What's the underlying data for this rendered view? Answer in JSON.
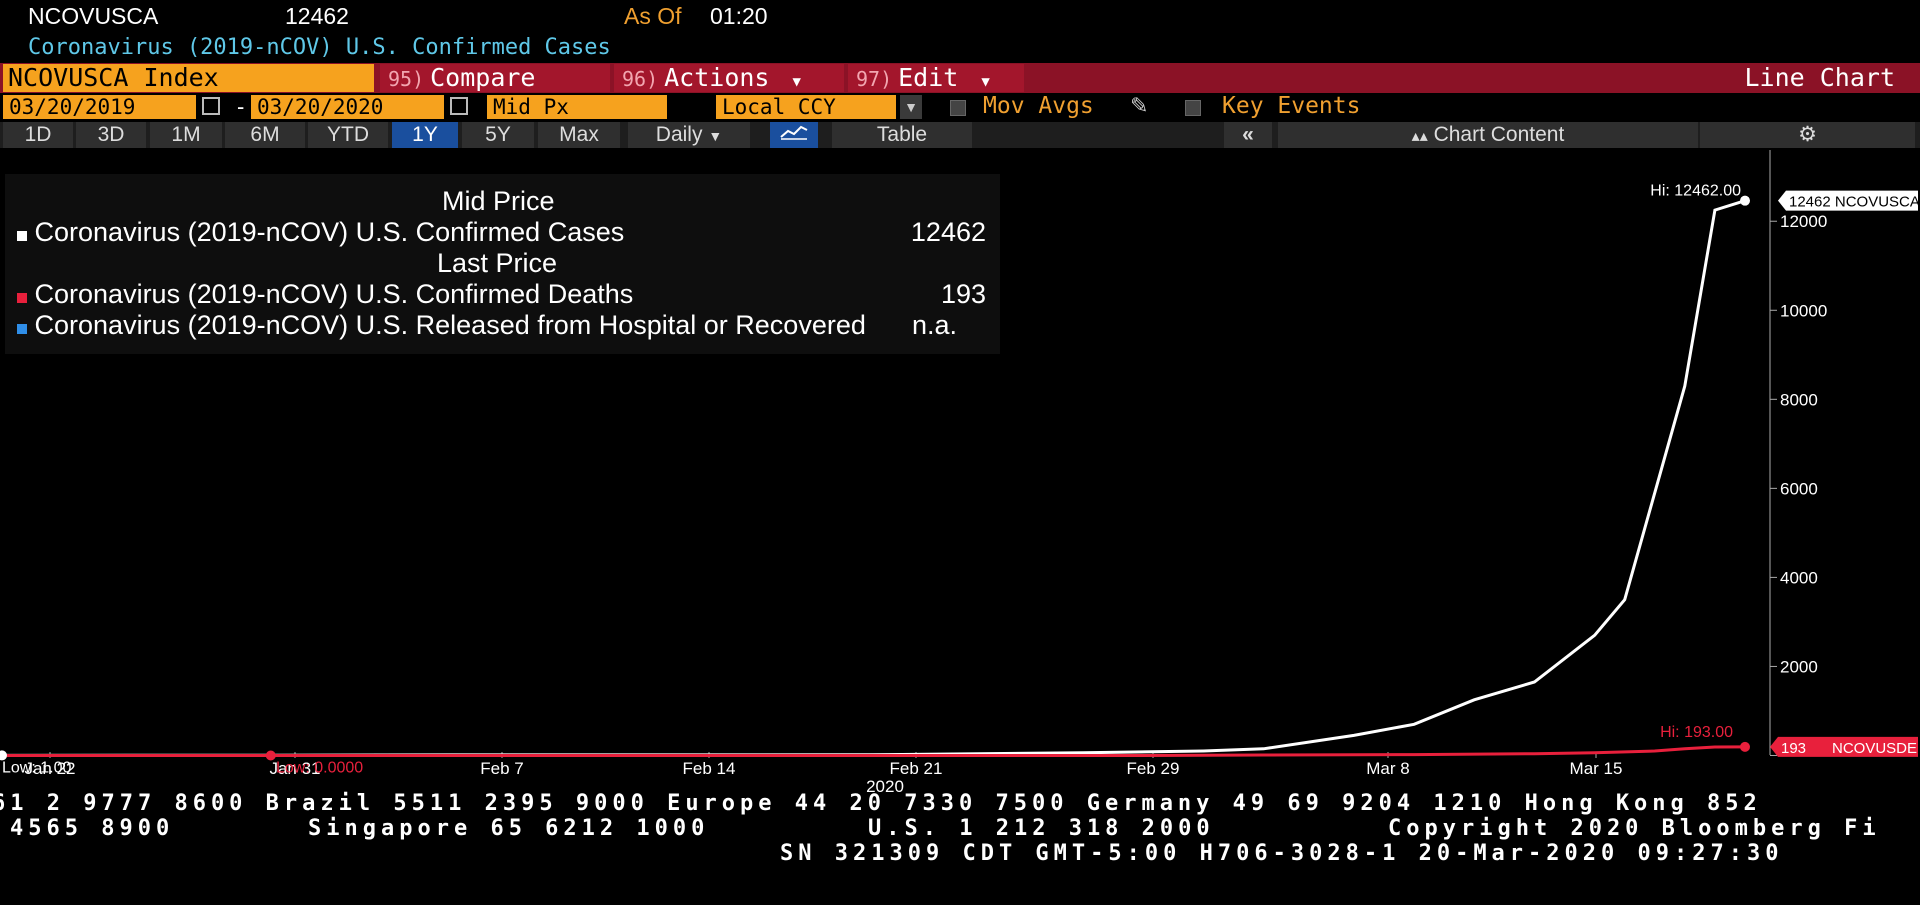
{
  "header": {
    "ticker": "NCOVUSCA",
    "value": "12462",
    "as_of_label": "As Of",
    "as_of_time": "01:20",
    "description": "Coronavirus (2019-nCOV) U.S. Confirmed Cases"
  },
  "command_bar": {
    "index": "NCOVUSCA Index",
    "compare_num": "95)",
    "compare": "Compare",
    "actions_num": "96)",
    "actions": "Actions",
    "edit_num": "97)",
    "edit": "Edit",
    "chart_type": "Line Chart"
  },
  "controls": {
    "start_date": "03/20/2019",
    "dash": "-",
    "end_date": "03/20/2020",
    "field": "Mid Px",
    "currency": "Local CCY",
    "mov_avgs": "Mov Avgs",
    "key_events": "Key Events"
  },
  "range_buttons": [
    "1D",
    "3D",
    "1M",
    "6M",
    "YTD",
    "1Y",
    "5Y",
    "Max"
  ],
  "active_range": "1Y",
  "periodicity": "Daily",
  "table_label": "Table",
  "chart_content_label": "Chart Content",
  "legend": {
    "head1": "Mid Price",
    "row1": "Coronavirus (2019-nCOV) U.S. Confirmed Cases",
    "val1": "12462",
    "head2": "Last Price",
    "row2": "Coronavirus (2019-nCOV) U.S. Confirmed Deaths",
    "val2": "193",
    "row3": "Coronavirus (2019-nCOV) U.S. Released from Hospital or Recovered",
    "val3": "n.a."
  },
  "colors": {
    "cases": "#ffffff",
    "deaths": "#e8203c",
    "recovered": "#2f8ee8",
    "accent": "#f6a21e"
  },
  "chart_data": {
    "type": "line",
    "x_year_label": "2020",
    "x_ticks": [
      "Jan 22",
      "Jan 31",
      "Feb 7",
      "Feb 14",
      "Feb 21",
      "Feb 29",
      "Mar 8",
      "Mar 15"
    ],
    "y_ticks": [
      "2000",
      "4000",
      "6000",
      "8000",
      "10000",
      "12000"
    ],
    "ylim": [
      -1000,
      13600
    ],
    "series": [
      {
        "name": "NCOVUSCA",
        "x": [
          "2020-01-22",
          "2020-01-31",
          "2020-02-06",
          "2020-02-12",
          "2020-02-20",
          "2020-02-27",
          "2020-03-02",
          "2020-03-04",
          "2020-03-07",
          "2020-03-09",
          "2020-03-11",
          "2020-03-13",
          "2020-03-15",
          "2020-03-16",
          "2020-03-18",
          "2020-03-19",
          "2020-03-20"
        ],
        "values": [
          1,
          6,
          12,
          13,
          15,
          60,
          100,
          150,
          450,
          700,
          1250,
          1650,
          2700,
          3500,
          8300,
          12250,
          12462
        ]
      },
      {
        "name": "NCOVUSDE",
        "x": [
          "2020-01-22",
          "2020-01-31",
          "2020-02-29",
          "2020-03-04",
          "2020-03-09",
          "2020-03-13",
          "2020-03-15",
          "2020-03-17",
          "2020-03-18",
          "2020-03-19",
          "2020-03-20"
        ],
        "values": [
          0,
          0,
          0,
          10,
          20,
          40,
          60,
          100,
          150,
          190,
          193
        ]
      }
    ],
    "annotations": {
      "cases_hi": "Hi: 12462.00",
      "cases_tag": "12462 NCOVUSCA",
      "cases_low": "Low: 1.00",
      "deaths_hi": "Hi: 193.00",
      "deaths_tag": "193",
      "deaths_tag_name": "NCOVUSDE",
      "deaths_low": "Low: 0.0000"
    }
  },
  "footer": {
    "line1": "61 2 9777 8600 Brazil 5511 2395 9000 Europe 44 20 7330 7500 Germany 49 69 9204 1210 Hong Kong 852",
    "line2a": "4565 8900",
    "line2b": "Singapore 65 6212 1000",
    "line2c": "U.S. 1 212 318 2000",
    "line2d": "Copyright 2020 Bloomberg Fi",
    "line3": "SN 321309 CDT  GMT-5:00 H706-3028-1 20-Mar-2020 09:27:30"
  }
}
